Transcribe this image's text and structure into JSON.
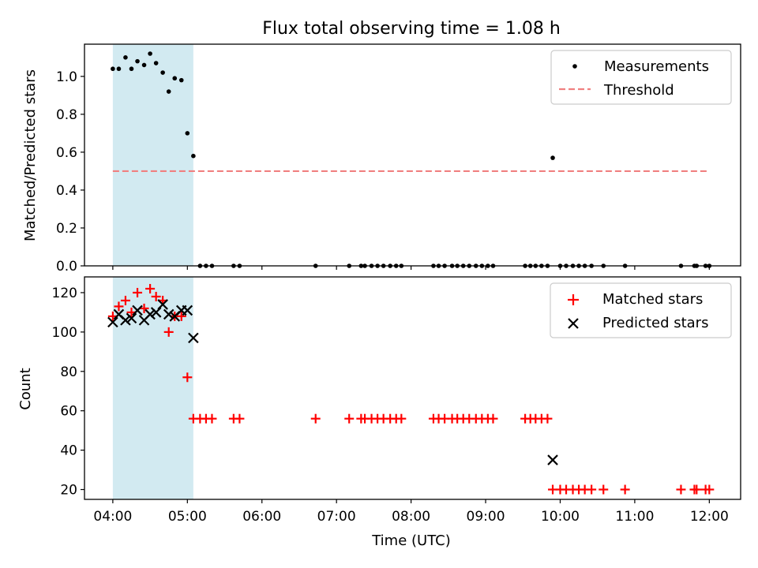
{
  "chart_data": {
    "title": "Flux total observing time = 1.08 h",
    "xlabel": "Time (UTC)",
    "xticks": [
      "04:00",
      "05:00",
      "06:00",
      "07:00",
      "08:00",
      "09:00",
      "10:00",
      "11:00",
      "12:00"
    ],
    "xlim_hours": [
      3.62,
      12.42
    ],
    "shaded_interval_hours": [
      4.0,
      5.08
    ],
    "shade_color": "#add8e6",
    "panels": [
      {
        "type": "scatter",
        "ylabel": "Matched/Predicted stars",
        "ylim": [
          0,
          1.17
        ],
        "yticks": [
          "0.0",
          "0.2",
          "0.4",
          "0.6",
          "0.8",
          "1.0"
        ],
        "threshold": {
          "name": "Threshold",
          "value": 0.5,
          "x_range": [
            4.0,
            12.0
          ],
          "color": "#f08080"
        },
        "series": [
          {
            "name": "Measurements",
            "marker": "dot",
            "color": "#000000",
            "points": [
              [
                4.0,
                1.04
              ],
              [
                4.08,
                1.04
              ],
              [
                4.17,
                1.1
              ],
              [
                4.25,
                1.04
              ],
              [
                4.33,
                1.08
              ],
              [
                4.42,
                1.06
              ],
              [
                4.5,
                1.12
              ],
              [
                4.58,
                1.07
              ],
              [
                4.67,
                1.02
              ],
              [
                4.75,
                0.92
              ],
              [
                4.83,
                0.99
              ],
              [
                4.92,
                0.98
              ],
              [
                5.0,
                0.7
              ],
              [
                5.08,
                0.58
              ],
              [
                5.17,
                0
              ],
              [
                5.25,
                0
              ],
              [
                5.33,
                0
              ],
              [
                5.62,
                0
              ],
              [
                5.7,
                0
              ],
              [
                6.72,
                0
              ],
              [
                7.17,
                0
              ],
              [
                7.33,
                0
              ],
              [
                7.38,
                0
              ],
              [
                7.47,
                0
              ],
              [
                7.55,
                0
              ],
              [
                7.63,
                0
              ],
              [
                7.72,
                0
              ],
              [
                7.8,
                0
              ],
              [
                7.87,
                0
              ],
              [
                8.3,
                0
              ],
              [
                8.37,
                0
              ],
              [
                8.45,
                0
              ],
              [
                8.55,
                0
              ],
              [
                8.62,
                0
              ],
              [
                8.7,
                0
              ],
              [
                8.78,
                0
              ],
              [
                8.87,
                0
              ],
              [
                8.95,
                0
              ],
              [
                9.03,
                0
              ],
              [
                9.1,
                0
              ],
              [
                9.53,
                0
              ],
              [
                9.6,
                0
              ],
              [
                9.67,
                0
              ],
              [
                9.75,
                0
              ],
              [
                9.83,
                0
              ],
              [
                9.9,
                0.57
              ],
              [
                10.0,
                0
              ],
              [
                10.08,
                0
              ],
              [
                10.17,
                0
              ],
              [
                10.25,
                0
              ],
              [
                10.33,
                0
              ],
              [
                10.42,
                0
              ],
              [
                10.58,
                0
              ],
              [
                10.87,
                0
              ],
              [
                11.62,
                0
              ],
              [
                11.8,
                0
              ],
              [
                11.83,
                0
              ],
              [
                11.95,
                0
              ],
              [
                12.0,
                0
              ]
            ]
          }
        ],
        "legend": {
          "placement": "upper right",
          "entries": [
            "Measurements",
            "Threshold"
          ]
        }
      },
      {
        "type": "scatter",
        "ylabel": "Count",
        "ylim": [
          15,
          128
        ],
        "yticks": [
          "20",
          "40",
          "60",
          "80",
          "100",
          "120"
        ],
        "series": [
          {
            "name": "Matched stars",
            "marker": "plus",
            "color": "#ff0000",
            "points": [
              [
                4.0,
                108
              ],
              [
                4.08,
                113
              ],
              [
                4.17,
                116
              ],
              [
                4.25,
                110
              ],
              [
                4.33,
                120
              ],
              [
                4.42,
                112
              ],
              [
                4.5,
                122
              ],
              [
                4.58,
                118
              ],
              [
                4.67,
                116
              ],
              [
                4.75,
                100
              ],
              [
                4.83,
                108
              ],
              [
                4.92,
                108
              ],
              [
                5.0,
                77
              ],
              [
                5.08,
                56
              ],
              [
                5.17,
                56
              ],
              [
                5.25,
                56
              ],
              [
                5.33,
                56
              ],
              [
                5.62,
                56
              ],
              [
                5.7,
                56
              ],
              [
                6.72,
                56
              ],
              [
                7.17,
                56
              ],
              [
                7.33,
                56
              ],
              [
                7.38,
                56
              ],
              [
                7.47,
                56
              ],
              [
                7.55,
                56
              ],
              [
                7.63,
                56
              ],
              [
                7.72,
                56
              ],
              [
                7.8,
                56
              ],
              [
                7.87,
                56
              ],
              [
                8.3,
                56
              ],
              [
                8.37,
                56
              ],
              [
                8.45,
                56
              ],
              [
                8.55,
                56
              ],
              [
                8.62,
                56
              ],
              [
                8.7,
                56
              ],
              [
                8.78,
                56
              ],
              [
                8.87,
                56
              ],
              [
                8.95,
                56
              ],
              [
                9.03,
                56
              ],
              [
                9.1,
                56
              ],
              [
                9.53,
                56
              ],
              [
                9.6,
                56
              ],
              [
                9.67,
                56
              ],
              [
                9.75,
                56
              ],
              [
                9.83,
                56
              ],
              [
                9.9,
                20
              ],
              [
                10.0,
                20
              ],
              [
                10.08,
                20
              ],
              [
                10.17,
                20
              ],
              [
                10.25,
                20
              ],
              [
                10.33,
                20
              ],
              [
                10.42,
                20
              ],
              [
                10.58,
                20
              ],
              [
                10.87,
                20
              ],
              [
                11.62,
                20
              ],
              [
                11.8,
                20
              ],
              [
                11.83,
                20
              ],
              [
                11.95,
                20
              ],
              [
                12.0,
                20
              ]
            ]
          },
          {
            "name": "Predicted stars",
            "marker": "x",
            "color": "#000000",
            "points": [
              [
                4.0,
                105
              ],
              [
                4.08,
                109
              ],
              [
                4.17,
                106
              ],
              [
                4.25,
                107
              ],
              [
                4.33,
                111
              ],
              [
                4.42,
                106
              ],
              [
                4.5,
                109
              ],
              [
                4.58,
                110
              ],
              [
                4.67,
                114
              ],
              [
                4.75,
                109
              ],
              [
                4.83,
                108
              ],
              [
                4.92,
                111
              ],
              [
                5.0,
                111
              ],
              [
                5.08,
                97
              ],
              [
                9.9,
                35
              ]
            ]
          }
        ],
        "legend": {
          "placement": "upper right",
          "entries": [
            "Matched stars",
            "Predicted stars"
          ]
        }
      }
    ]
  }
}
